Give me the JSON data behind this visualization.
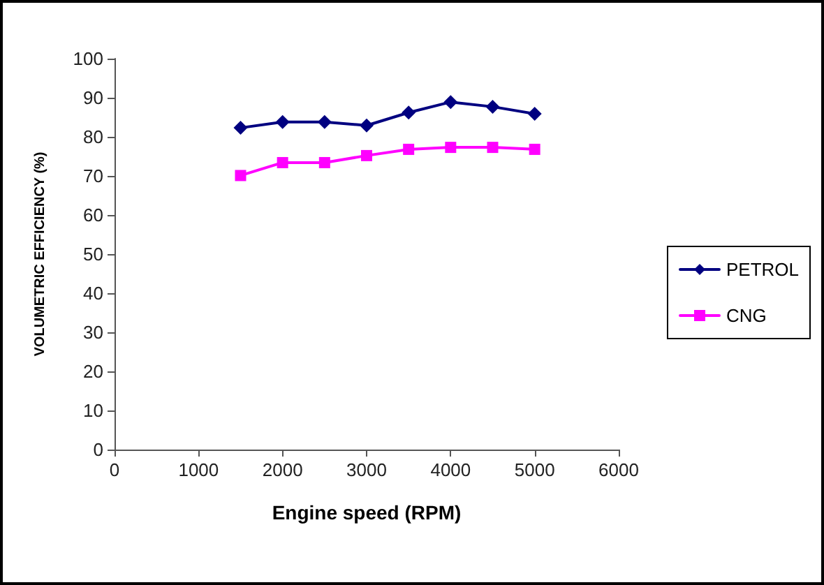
{
  "chart_data": {
    "type": "line",
    "xlabel": "Engine speed (RPM)",
    "ylabel": "VOLUMETRIC EFFICIENCY (%)",
    "x": [
      1500,
      2000,
      2500,
      3000,
      3500,
      4000,
      4500,
      5000
    ],
    "series": [
      {
        "name": "PETROL",
        "color": "#000080",
        "marker": "diamond",
        "values": [
          82.3,
          83.8,
          83.8,
          82.9,
          86.2,
          88.9,
          87.7,
          85.9
        ]
      },
      {
        "name": "CNG",
        "color": "#ff00ff",
        "marker": "square",
        "values": [
          70.1,
          73.4,
          73.4,
          75.2,
          76.8,
          77.3,
          77.3,
          76.8
        ]
      }
    ],
    "xlim": [
      0,
      6000
    ],
    "xticks": [
      0,
      1000,
      2000,
      3000,
      4000,
      5000,
      6000
    ],
    "ylim": [
      0,
      100
    ],
    "yticks": [
      0,
      10,
      20,
      30,
      40,
      50,
      60,
      70,
      80,
      90,
      100
    ],
    "grid": false,
    "legend": "right"
  }
}
